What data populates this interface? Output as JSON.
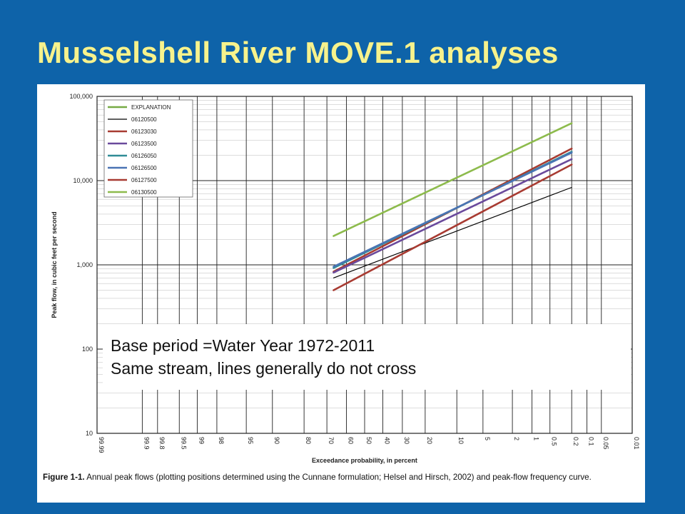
{
  "slide": {
    "title": "Musselshell River MOVE.1 analyses"
  },
  "callout": {
    "line1": "Base period =Water Year 1972-2011",
    "line2": "Same stream, lines generally do not cross"
  },
  "caption": {
    "label": "Figure 1-1.",
    "text": " Annual peak flows (plotting positions determined using the Cunnane formulation; Helsel and Hirsch, 2002) and peak-flow frequency curve."
  },
  "chart_data": {
    "type": "line",
    "xlabel": "Exceedance probability, in percent",
    "ylabel": "Peak flow, in cubic feet per second",
    "x_scale": "normal-probability (reversed)",
    "y_scale": "log",
    "ylim": [
      10,
      100000
    ],
    "x_ticks": [
      "99.99",
      "99.9",
      "99.8",
      "99.5",
      "99",
      "98",
      "95",
      "90",
      "80",
      "70",
      "60",
      "50",
      "40",
      "30",
      "20",
      "10",
      "5",
      "2",
      "1",
      "0.5",
      "0.2",
      "0.1",
      "0.05",
      "0.01"
    ],
    "y_ticks": [
      "10",
      "100",
      "1,000",
      "10,000",
      "100,000"
    ],
    "grid": true,
    "legend_placement": "top-left",
    "legend_title": "EXPLANATION",
    "colors": {
      "explanation": "#77aa44",
      "06120500": "#000000",
      "06123030": "#a83b32",
      "06123500": "#6a4a9c",
      "06126050": "#2f8c96",
      "06126500": "#4a74b4",
      "06127500": "#a83b32",
      "06130500": "#8dbb4c"
    },
    "series": [
      {
        "name": "06120500",
        "x": [
          66.7,
          0.2
        ],
        "y": [
          700,
          8300
        ]
      },
      {
        "name": "06123030",
        "x": [
          66.7,
          0.2
        ],
        "y": [
          830,
          24000
        ]
      },
      {
        "name": "06123500",
        "x": [
          66.7,
          0.2
        ],
        "y": [
          810,
          18000
        ]
      },
      {
        "name": "06126050",
        "x": [
          66.7,
          0.2
        ],
        "y": [
          920,
          22000
        ]
      },
      {
        "name": "06126500",
        "x": [
          66.7,
          0.2
        ],
        "y": [
          950,
          21500
        ]
      },
      {
        "name": "06127500",
        "x": [
          66.7,
          0.2
        ],
        "y": [
          500,
          15500
        ]
      },
      {
        "name": "06130500",
        "x": [
          66.7,
          0.2
        ],
        "y": [
          2200,
          48000
        ]
      }
    ]
  }
}
